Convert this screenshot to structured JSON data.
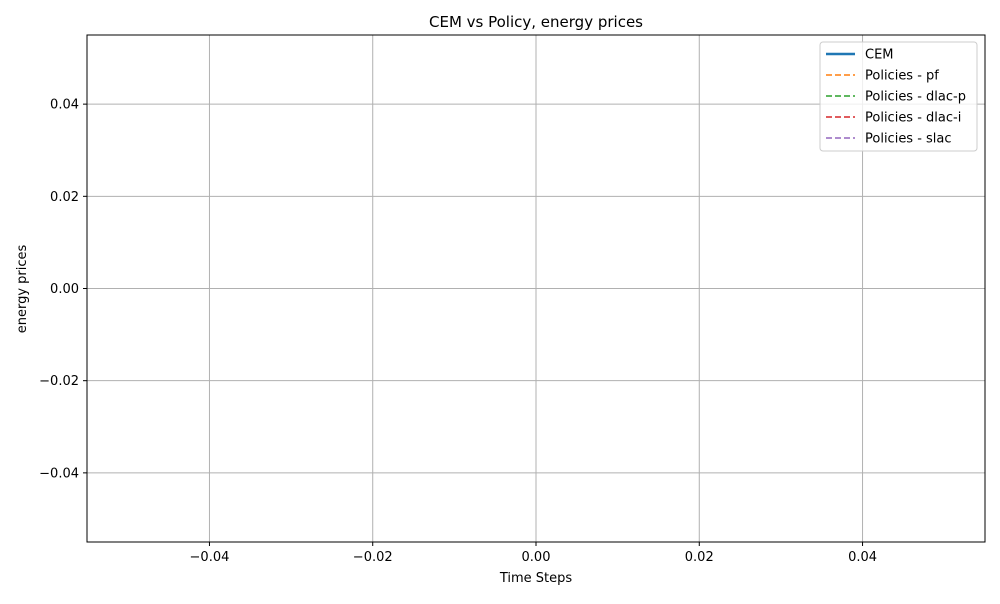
{
  "chart_data": {
    "type": "line",
    "title": "CEM vs Policy, energy prices",
    "xlabel": "Time Steps",
    "ylabel": "energy prices",
    "xlim": [
      -0.055,
      0.055
    ],
    "ylim": [
      -0.055,
      0.055
    ],
    "x_ticks": [
      -0.04,
      -0.02,
      0.0,
      0.02,
      0.04
    ],
    "x_tick_labels": [
      "−0.04",
      "−0.02",
      "0.00",
      "0.02",
      "0.04"
    ],
    "y_ticks": [
      -0.04,
      -0.02,
      0.0,
      0.02,
      0.04
    ],
    "y_tick_labels": [
      "−0.04",
      "−0.02",
      "0.00",
      "0.02",
      "0.04"
    ],
    "grid": true,
    "legend_position": "top-right",
    "series": [
      {
        "name": "CEM",
        "color": "#1f77b4",
        "style": "solid",
        "x": [],
        "y": []
      },
      {
        "name": "Policies - pf",
        "color": "#ff7f0e",
        "style": "dashed",
        "x": [],
        "y": []
      },
      {
        "name": "Policies - dlac-p",
        "color": "#2ca02c",
        "style": "dashed",
        "x": [],
        "y": []
      },
      {
        "name": "Policies - dlac-i",
        "color": "#d62728",
        "style": "dashed",
        "x": [],
        "y": []
      },
      {
        "name": "Policies - slac",
        "color": "#9467bd",
        "style": "dashed",
        "x": [],
        "y": []
      }
    ]
  }
}
